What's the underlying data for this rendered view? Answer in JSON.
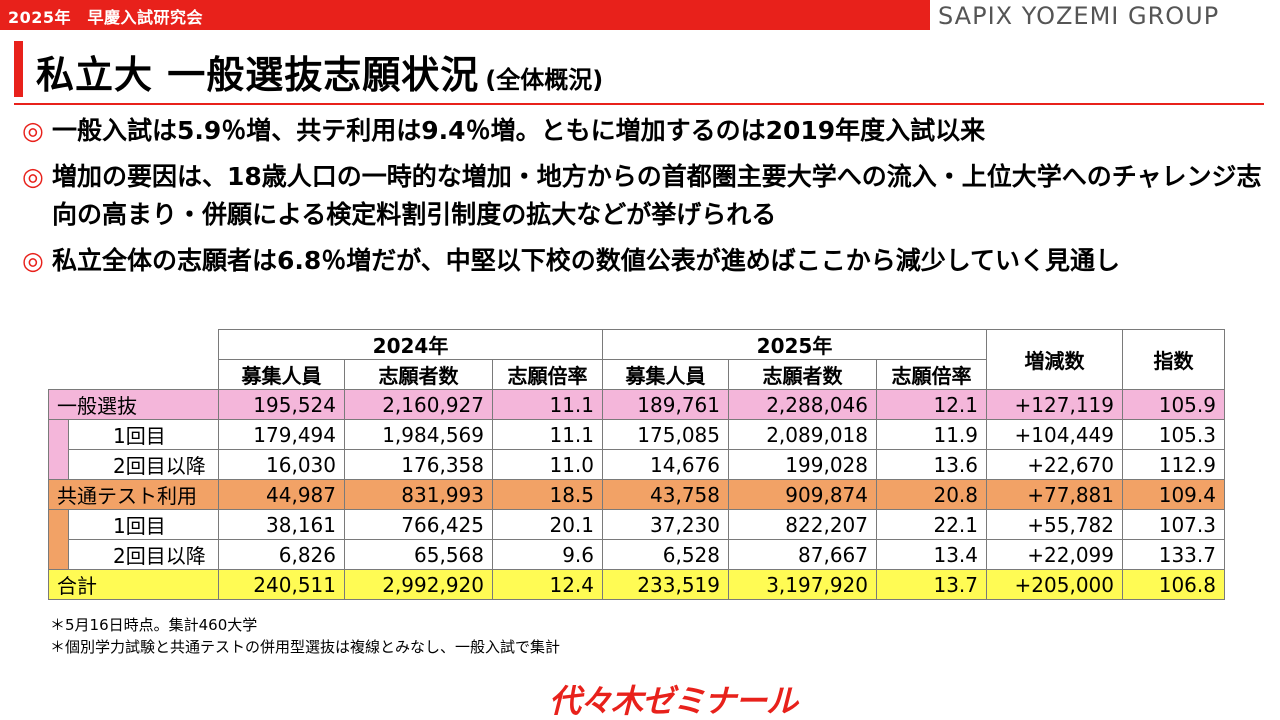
{
  "header": {
    "label": "2025年　早慶入試研究会",
    "brand": "SAPIX YOZEMI GROUP"
  },
  "title": {
    "main": "私立大 一般選抜志願状況",
    "sub": "(全体概況)"
  },
  "bullets": [
    {
      "mark": "◎",
      "text": "一般入試は5.9％増、共テ利用は9.4％増。ともに増加するのは2019年度入試以来"
    },
    {
      "mark": "◎",
      "text": "増加の要因は、18歳人口の一時的な増加・地方からの首都圏主要大学への流入・上位大学へのチャレンジ志向の高まり・併願による検定料割引制度の拡大などが挙げられる"
    },
    {
      "mark": "◎",
      "text": "私立全体の志願者は6.8％増だが、中堅以下校の数値公表が進めばここから減少していく見通し"
    }
  ],
  "table": {
    "year_2024": "2024年",
    "year_2025": "2025年",
    "col_boshu": "募集人員",
    "col_shigan": "志願者数",
    "col_bairitsu": "志願倍率",
    "col_zogen": "増減数",
    "col_shisu": "指数",
    "rows": [
      {
        "label": "一般選抜",
        "b24": "195,524",
        "s24": "2,160,927",
        "r24": "11.1",
        "b25": "189,761",
        "s25": "2,288,046",
        "r25": "12.1",
        "diff": "+127,119",
        "idx": "105.9"
      },
      {
        "label": "1回目",
        "b24": "179,494",
        "s24": "1,984,569",
        "r24": "11.1",
        "b25": "175,085",
        "s25": "2,089,018",
        "r25": "11.9",
        "diff": "+104,449",
        "idx": "105.3"
      },
      {
        "label": "2回目以降",
        "b24": "16,030",
        "s24": "176,358",
        "r24": "11.0",
        "b25": "14,676",
        "s25": "199,028",
        "r25": "13.6",
        "diff": "+22,670",
        "idx": "112.9"
      },
      {
        "label": "共通テスト利用",
        "b24": "44,987",
        "s24": "831,993",
        "r24": "18.5",
        "b25": "43,758",
        "s25": "909,874",
        "r25": "20.8",
        "diff": "+77,881",
        "idx": "109.4"
      },
      {
        "label": "1回目",
        "b24": "38,161",
        "s24": "766,425",
        "r24": "20.1",
        "b25": "37,230",
        "s25": "822,207",
        "r25": "22.1",
        "diff": "+55,782",
        "idx": "107.3"
      },
      {
        "label": "2回目以降",
        "b24": "6,826",
        "s24": "65,568",
        "r24": "9.6",
        "b25": "6,528",
        "s25": "87,667",
        "r25": "13.4",
        "diff": "+22,099",
        "idx": "133.7"
      },
      {
        "label": "合計",
        "b24": "240,511",
        "s24": "2,992,920",
        "r24": "12.4",
        "b25": "233,519",
        "s25": "3,197,920",
        "r25": "13.7",
        "diff": "+205,000",
        "idx": "106.8"
      }
    ]
  },
  "notes": [
    "＊5月16日時点。集計460大学",
    "＊個別学力試験と共通テストの併用型選抜は複線とみなし、一般入試で集計"
  ],
  "footer": {
    "logo": "代々木ゼミナール"
  },
  "colors": {
    "accent": "#e8211b",
    "ippan_row": "#f4b6da",
    "kyotsu_row": "#f2a266",
    "total_row": "#fffb54"
  }
}
